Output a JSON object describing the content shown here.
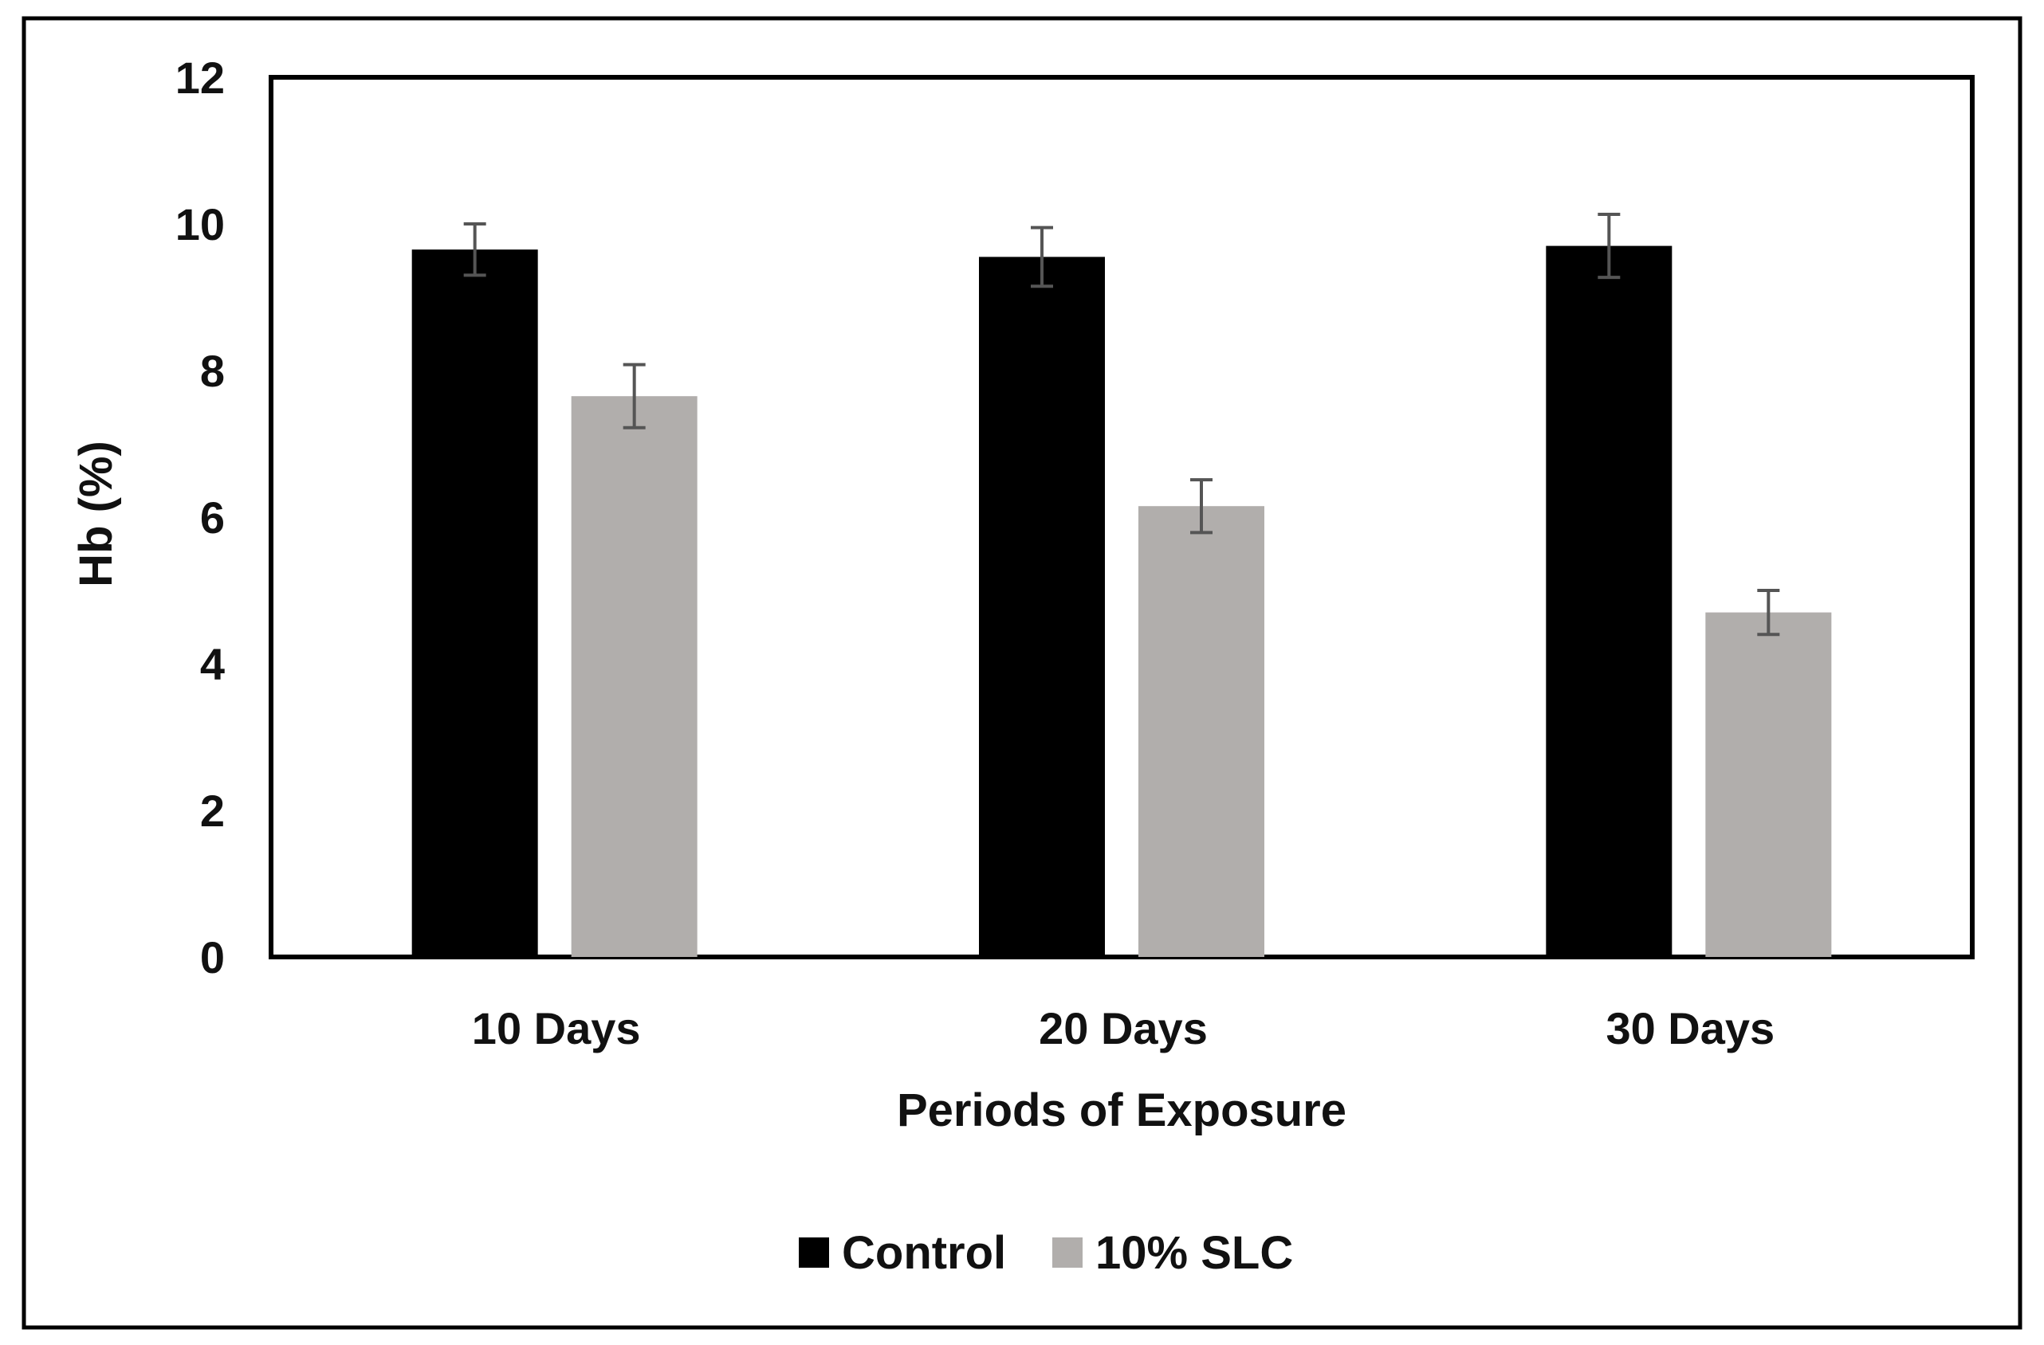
{
  "chart_data": {
    "type": "bar",
    "title": "",
    "xlabel": "Periods of Exposure",
    "ylabel": "Hb (%)",
    "ylim": [
      0,
      12
    ],
    "yticks": [
      0,
      2,
      4,
      6,
      8,
      10,
      12
    ],
    "grid": false,
    "legend_position": "bottom-center",
    "categories": [
      "10 Days",
      "20 Days",
      "30 Days"
    ],
    "series": [
      {
        "name": "Control",
        "color": "#000000",
        "values": [
          9.65,
          9.55,
          9.7
        ],
        "errors": [
          0.35,
          0.4,
          0.43
        ]
      },
      {
        "name": "10% SLC",
        "color": "#b1aeac",
        "values": [
          7.65,
          6.15,
          4.7
        ],
        "errors": [
          0.43,
          0.36,
          0.3
        ]
      }
    ]
  }
}
